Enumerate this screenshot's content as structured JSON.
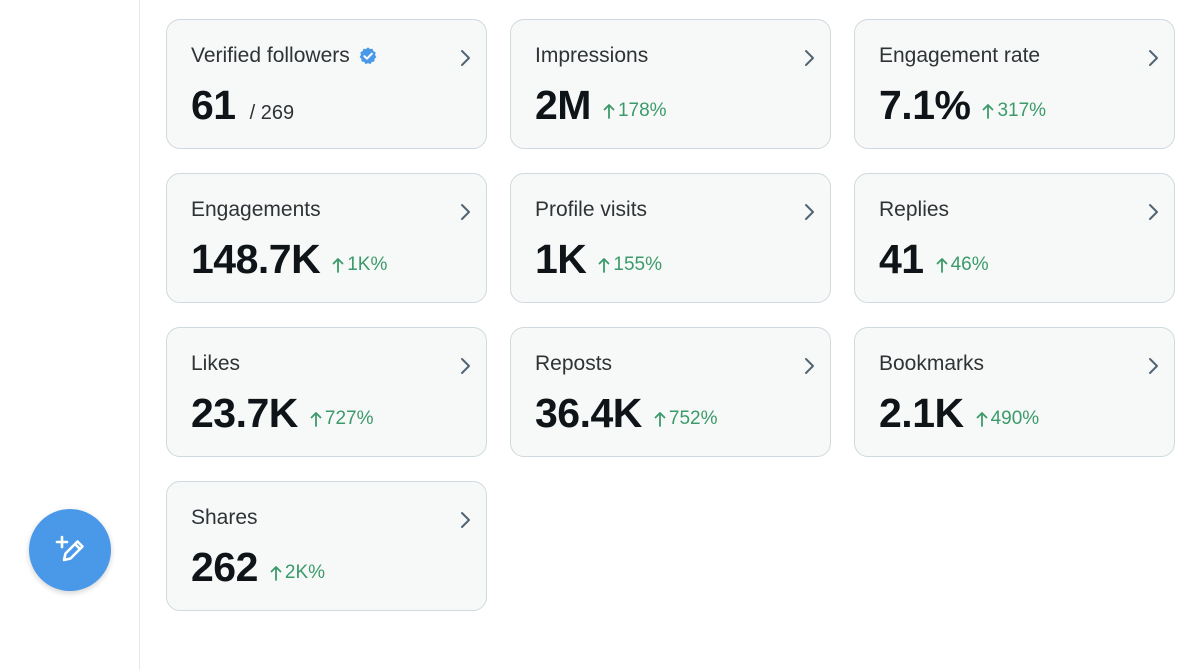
{
  "compose": {
    "icon": "compose-icon"
  },
  "cards": [
    {
      "label": "Verified followers",
      "value": "61",
      "total": "/ 269",
      "verified": true
    },
    {
      "label": "Impressions",
      "value": "2M",
      "change": "178%"
    },
    {
      "label": "Engagement rate",
      "value": "7.1%",
      "change": "317%"
    },
    {
      "label": "Engagements",
      "value": "148.7K",
      "change": "1K%"
    },
    {
      "label": "Profile visits",
      "value": "1K",
      "change": "155%"
    },
    {
      "label": "Replies",
      "value": "41",
      "change": "46%"
    },
    {
      "label": "Likes",
      "value": "23.7K",
      "change": "727%"
    },
    {
      "label": "Reposts",
      "value": "36.4K",
      "change": "752%"
    },
    {
      "label": "Bookmarks",
      "value": "2.1K",
      "change": "490%"
    },
    {
      "label": "Shares",
      "value": "262",
      "change": "2K%"
    }
  ],
  "colors": {
    "accent": "#4a99e9",
    "positive_change": "#3c9a6a",
    "verified_badge": "#4a99e9"
  }
}
